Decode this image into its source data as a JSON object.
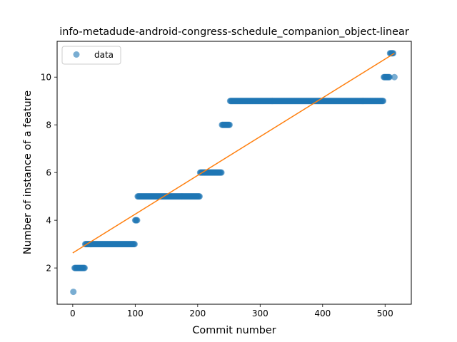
{
  "chart_data": {
    "type": "scatter",
    "title": "info-metadude-android-congress-schedule_companion_object-linear",
    "xlabel": "Commit number",
    "ylabel": "Number of instance of a feature",
    "xlim": [
      -25,
      542
    ],
    "ylim": [
      0.48,
      11.5
    ],
    "xticks": [
      0,
      100,
      200,
      300,
      400,
      500
    ],
    "yticks": [
      2,
      4,
      6,
      8,
      10
    ],
    "grid": false,
    "legend": {
      "placement": "top-left",
      "entries": [
        {
          "label": "data",
          "marker": "circle",
          "color": "#1f77b4"
        }
      ]
    },
    "series": [
      {
        "name": "data",
        "kind": "scatter",
        "color": "#1f77b4",
        "segments": [
          {
            "x_start": 1,
            "x_end": 1,
            "y": 1
          },
          {
            "x_start": 3,
            "x_end": 19,
            "y": 2
          },
          {
            "x_start": 20,
            "x_end": 99,
            "y": 3
          },
          {
            "x_start": 100,
            "x_end": 103,
            "y": 4
          },
          {
            "x_start": 104,
            "x_end": 203,
            "y": 5
          },
          {
            "x_start": 204,
            "x_end": 238,
            "y": 6
          },
          {
            "x_start": 239,
            "x_end": 251,
            "y": 8
          },
          {
            "x_start": 252,
            "x_end": 497,
            "y": 9
          },
          {
            "x_start": 498,
            "x_end": 507,
            "y": 10
          },
          {
            "x_start": 508,
            "x_end": 513,
            "y": 11
          },
          {
            "x_start": 515,
            "x_end": 515,
            "y": 10
          }
        ]
      },
      {
        "name": "",
        "kind": "line",
        "color": "#ff7f0e",
        "x": [
          0,
          515
        ],
        "y": [
          2.63,
          11.0
        ]
      }
    ]
  }
}
